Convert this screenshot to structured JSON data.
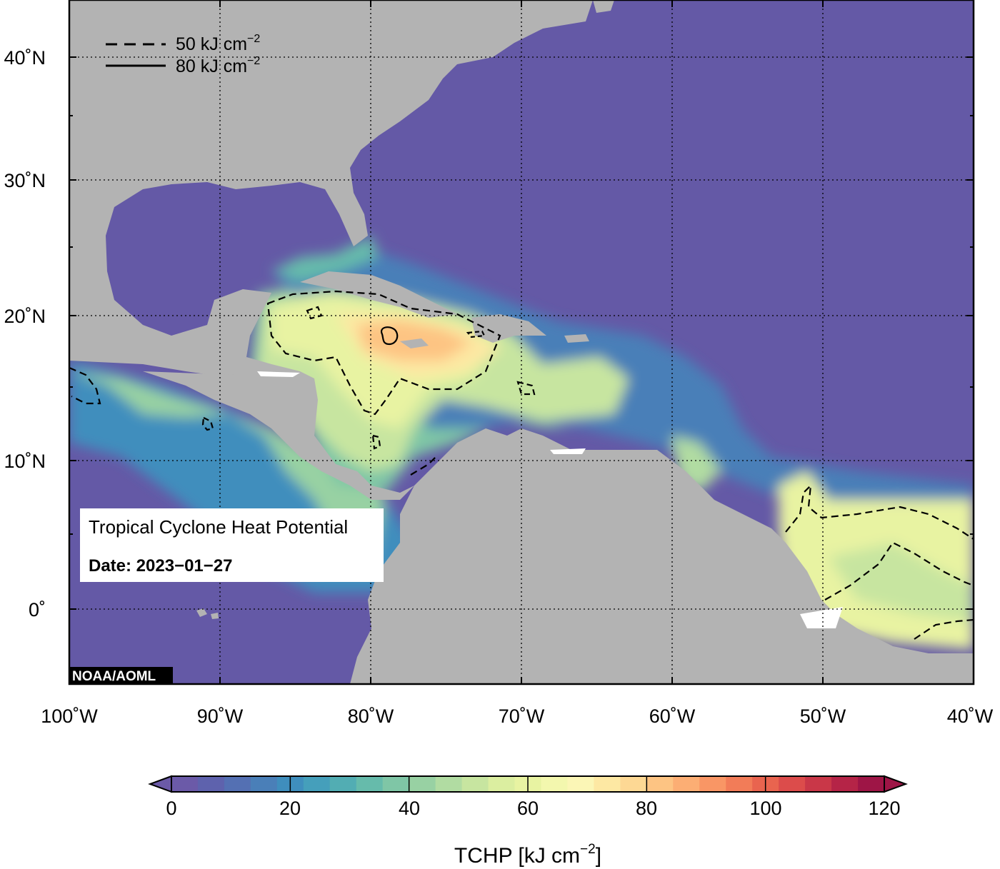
{
  "legend": {
    "dashed_label": "50 kJ cm",
    "solid_label": "80 kJ cm",
    "unit_exponent": "−2"
  },
  "info_box": {
    "title": "Tropical Cyclone Heat Potential",
    "date": "Date: 2023−01−27"
  },
  "credit": "NOAA/AOML",
  "lat_labels": [
    "40˚N",
    "30˚N",
    "20˚N",
    "10˚N",
    "0˚"
  ],
  "lon_labels": [
    "100˚W",
    "90˚W",
    "80˚W",
    "70˚W",
    "60˚W",
    "50˚W",
    "40˚W"
  ],
  "colorbar": {
    "ticks": [
      "0",
      "20",
      "40",
      "60",
      "80",
      "100",
      "120"
    ],
    "label": "TCHP [kJ cm",
    "label_exponent": "−2",
    "label_close": "]",
    "colors": [
      "#6b5aa8",
      "#5e62ad",
      "#5470b3",
      "#4a7fb8",
      "#3f8ebd",
      "#459fbb",
      "#52adb3",
      "#66bbab",
      "#7fc6a6",
      "#98d1a3",
      "#b1dca2",
      "#c7e5a0",
      "#dbeea0",
      "#e8f3a2",
      "#f3f7ae",
      "#fbf6b6",
      "#fde8a3",
      "#fdd894",
      "#fdc483",
      "#fcae74",
      "#f99665",
      "#f27c58",
      "#e9644f",
      "#dc4c4b",
      "#c93748",
      "#b52447",
      "#9e1546"
    ]
  },
  "map_colors": {
    "land": "#b3b3b3",
    "ocean_low": "#6459a6"
  }
}
